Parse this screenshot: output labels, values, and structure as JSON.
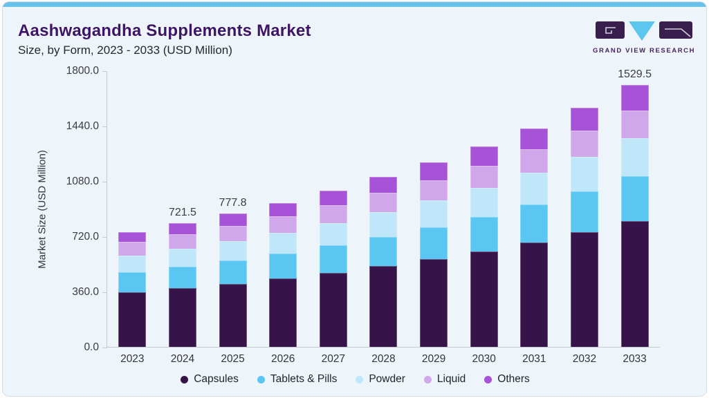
{
  "header": {
    "title": "Aashwagandha Supplements Market",
    "subtitle": "Size, by Form, 2023 - 2033 (USD Million)"
  },
  "logo": {
    "text": "GRAND VIEW RESEARCH",
    "dark_color": "#3a1f4e",
    "accent_color": "#5bc6ee"
  },
  "chart_data": {
    "type": "bar",
    "stacked": true,
    "title": "Aashwagandha Supplements Market Size, by Form, 2023 - 2033 (USD Million)",
    "xlabel": "",
    "ylabel": "Market Size (USD Million)",
    "ylim": [
      0,
      1800
    ],
    "yticks": [
      "0.0",
      "360.0",
      "720.0",
      "1080.0",
      "1440.0",
      "1800.0"
    ],
    "grid": false,
    "legend_position": "bottom",
    "categories": [
      "2023",
      "2024",
      "2025",
      "2026",
      "2027",
      "2028",
      "2029",
      "2030",
      "2031",
      "2032",
      "2033"
    ],
    "series": [
      {
        "name": "Capsules",
        "color": "#361449",
        "values": [
          317.5,
          341.7,
          368.8,
          398.8,
          433.0,
          471.3,
          512.3,
          557.7,
          609.8,
          668.4,
          732.7
        ]
      },
      {
        "name": "Tablets & Pills",
        "color": "#59c7f2",
        "values": [
          118.1,
          126.6,
          136.1,
          146.6,
          158.5,
          171.8,
          185.9,
          201.6,
          219.5,
          239.6,
          261.5
        ]
      },
      {
        "name": "Powder",
        "color": "#c0e7f9",
        "values": [
          97.3,
          104.6,
          112.8,
          121.8,
          132.1,
          143.6,
          155.8,
          169.5,
          185.1,
          202.6,
          221.8
        ]
      },
      {
        "name": "Liquid",
        "color": "#d0a7ea",
        "values": [
          79.2,
          84.3,
          89.9,
          96.1,
          103.1,
          110.9,
          119.1,
          128.1,
          138.4,
          149.8,
          162.1
        ]
      },
      {
        "name": "Others",
        "color": "#a653d7",
        "values": [
          59.1,
          64.3,
          70.2,
          76.7,
          84.1,
          92.6,
          101.7,
          111.8,
          123.5,
          136.8,
          151.4
        ]
      }
    ],
    "totals": [
      671.2,
      721.5,
      777.8,
      840.0,
      910.8,
      990.2,
      1074.8,
      1168.7,
      1276.3,
      1397.2,
      1529.5
    ],
    "bar_labels": [
      "",
      "721.5",
      "777.8",
      "",
      "",
      "",
      "",
      "",
      "",
      "",
      "1529.5"
    ]
  }
}
